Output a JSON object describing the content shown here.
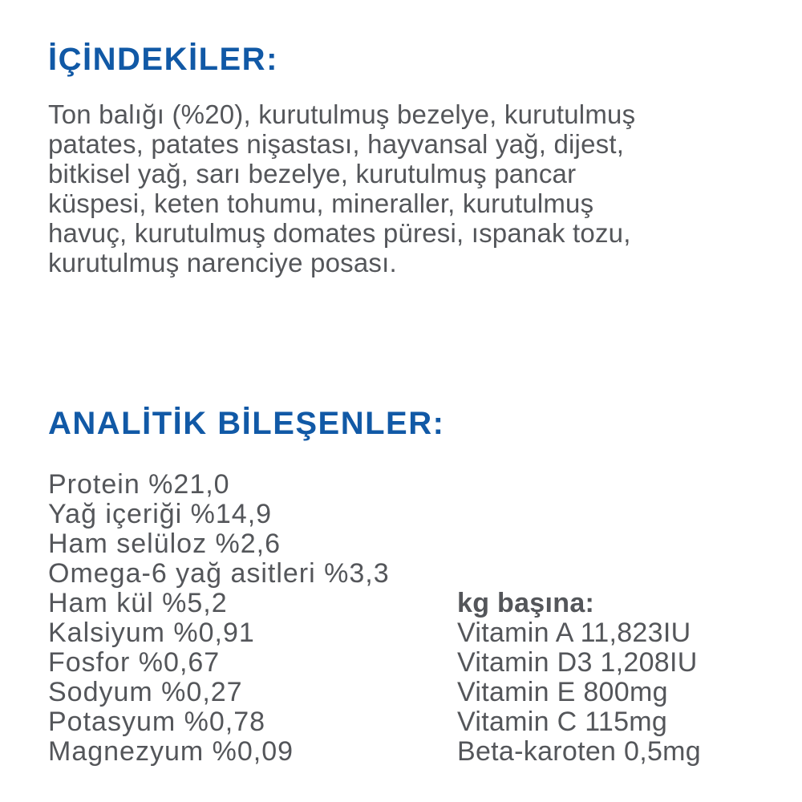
{
  "colors": {
    "heading_blue": "#1159a6",
    "body_gray": "#54565a",
    "background": "#ffffff"
  },
  "ingredients": {
    "title": "İÇİNDEKİLER:",
    "text": "Ton balığı (%20), kurutulmuş bezelye, kurutulmuş\npatates, patates nişastası, hayvansal yağ, dijest,\nbitkisel yağ, sarı bezelye, kurutulmuş pancar\nküspesi, keten tohumu, mineraller, kurutulmuş\nhavuç, kurutulmuş domates püresi, ıspanak tozu,\nkurutulmuş narenciye posası."
  },
  "analytical": {
    "title": "ANALİTİK BİLEŞENLER:",
    "components": [
      "Protein %21,0",
      "Yağ içeriği %14,9",
      "Ham selüloz %2,6",
      "Omega-6 yağ asitleri %3,3",
      "Ham kül %5,2",
      "Kalsiyum %0,91",
      "Fosfor %0,67",
      "Sodyum %0,27",
      "Potasyum %0,78",
      "Magnezyum %0,09"
    ],
    "per_kg": {
      "title": "kg başına:",
      "items": [
        "Vitamin A 11,823IU",
        "Vitamin D3 1,208IU",
        "Vitamin E 800mg",
        "Vitamin C 115mg",
        "Beta-karoten 0,5mg"
      ]
    }
  }
}
